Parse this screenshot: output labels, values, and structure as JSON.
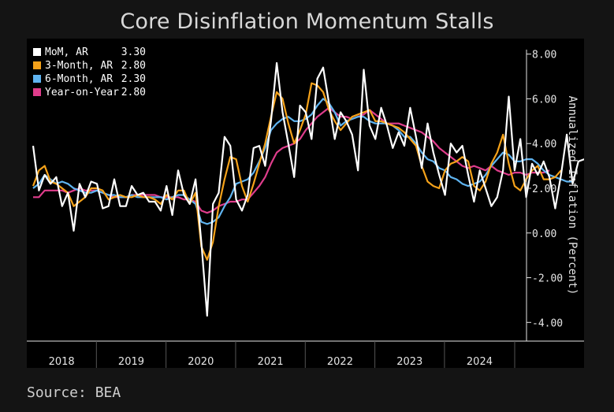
{
  "title": "Core Disinflation Momentum Stalls",
  "source": "Source: BEA",
  "chart_data": {
    "type": "line",
    "ylabel": "Annualized Inflation (Percent)",
    "ylim": [
      -4.8,
      8.2
    ],
    "yticks": [
      -4,
      -2,
      0,
      2,
      4,
      6,
      8
    ],
    "ytick_labels": [
      "-4.00",
      "-2.00",
      "0.00",
      "2.00",
      "4.00",
      "6.00",
      "8.00"
    ],
    "x_start": "2018-01",
    "x_end": "2024-08",
    "years": [
      "2018",
      "2019",
      "2020",
      "2021",
      "2022",
      "2023",
      "2024"
    ],
    "legend_position": "top-left",
    "series": [
      {
        "name": "MoM, AR",
        "last_value": "3.30",
        "color": "#ffffff",
        "values": [
          3.9,
          1.9,
          2.6,
          2.2,
          2.5,
          1.2,
          1.8,
          0.1,
          2.2,
          1.6,
          2.3,
          2.2,
          1.1,
          1.2,
          2.4,
          1.2,
          1.2,
          2.1,
          1.7,
          1.8,
          1.4,
          1.4,
          1.0,
          2.1,
          0.8,
          2.8,
          1.7,
          1.3,
          2.4,
          -0.4,
          -3.7,
          1.3,
          1.8,
          4.3,
          3.9,
          1.5,
          1.0,
          1.7,
          3.8,
          3.9,
          3.0,
          5.0,
          7.6,
          5.4,
          4.0,
          2.5,
          5.7,
          5.4,
          4.2,
          6.9,
          7.4,
          5.8,
          4.2,
          5.4,
          5.0,
          4.4,
          2.8,
          7.3,
          4.8,
          4.2,
          5.6,
          4.8,
          3.8,
          4.5,
          3.9,
          5.6,
          4.3,
          2.9,
          4.9,
          3.6,
          2.6,
          1.7,
          4.0,
          3.6,
          3.9,
          2.6,
          1.4,
          2.8,
          2.0,
          1.2,
          1.6,
          2.8,
          6.1,
          2.8,
          4.2,
          1.6,
          3.1,
          2.6,
          3.2,
          2.5,
          1.1,
          2.6,
          4.4,
          2.2,
          3.2,
          3.3
        ]
      },
      {
        "name": "3-Month, AR",
        "last_value": "2.80",
        "color": "#f5a21a",
        "values": [
          2.1,
          2.8,
          3.0,
          2.3,
          2.2,
          2.0,
          1.8,
          1.2,
          1.4,
          1.6,
          2.0,
          2.0,
          1.9,
          1.5,
          1.6,
          1.7,
          1.6,
          1.6,
          1.7,
          1.6,
          1.6,
          1.5,
          1.3,
          1.7,
          1.5,
          1.9,
          1.9,
          1.3,
          1.8,
          -0.6,
          -1.2,
          -0.4,
          1.2,
          2.4,
          3.4,
          3.3,
          2.1,
          1.4,
          2.2,
          3.1,
          4.0,
          5.2,
          6.3,
          6.0,
          4.9,
          4.0,
          4.6,
          5.3,
          6.7,
          6.6,
          6.3,
          5.5,
          5.0,
          4.6,
          4.9,
          5.2,
          5.3,
          5.4,
          5.5,
          5.0,
          5.0,
          4.9,
          4.8,
          4.7,
          4.5,
          4.2,
          3.9,
          3.0,
          2.3,
          2.1,
          2.0,
          2.8,
          3.1,
          3.2,
          3.4,
          3.2,
          2.1,
          1.9,
          2.3,
          3.1,
          3.6,
          4.4,
          3.1,
          2.1,
          1.9,
          2.4,
          2.8,
          3.0,
          2.4,
          2.4,
          2.5,
          2.8
        ]
      },
      {
        "name": "6-Month, AR",
        "last_value": "2.30",
        "color": "#5fb4f0",
        "values": [
          2.0,
          2.2,
          2.6,
          2.4,
          2.2,
          2.3,
          2.2,
          2.0,
          1.9,
          1.8,
          1.8,
          1.9,
          1.8,
          1.7,
          1.7,
          1.6,
          1.6,
          1.7,
          1.6,
          1.6,
          1.6,
          1.6,
          1.6,
          1.5,
          1.6,
          1.7,
          1.7,
          1.5,
          1.3,
          0.5,
          0.4,
          0.5,
          0.7,
          1.2,
          1.6,
          2.2,
          2.3,
          2.4,
          2.7,
          3.2,
          3.8,
          4.6,
          4.9,
          5.1,
          5.2,
          5.0,
          5.0,
          5.1,
          5.3,
          5.7,
          6.0,
          5.8,
          5.4,
          4.8,
          5.0,
          5.1,
          5.2,
          5.2,
          5.0,
          4.9,
          4.9,
          4.9,
          4.8,
          4.6,
          4.3,
          4.3,
          4.0,
          3.6,
          3.3,
          3.2,
          2.9,
          2.8,
          2.5,
          2.4,
          2.2,
          2.1,
          2.2,
          2.3,
          2.6,
          3.0,
          3.3,
          3.6,
          3.5,
          3.2,
          3.2,
          3.3,
          3.3,
          3.1,
          2.8,
          2.6,
          2.5,
          2.4,
          2.3,
          2.3
        ]
      },
      {
        "name": "Year-on-Year",
        "last_value": "2.80",
        "color": "#e03d8c",
        "values": [
          1.6,
          1.6,
          1.9,
          1.9,
          1.9,
          1.9,
          1.8,
          1.9,
          2.0,
          1.9,
          1.9,
          1.9,
          1.8,
          1.7,
          1.6,
          1.6,
          1.6,
          1.7,
          1.7,
          1.7,
          1.7,
          1.7,
          1.6,
          1.6,
          1.6,
          1.6,
          1.5,
          1.5,
          1.4,
          1.0,
          0.9,
          1.0,
          1.2,
          1.3,
          1.4,
          1.4,
          1.5,
          1.5,
          1.8,
          2.1,
          2.5,
          3.1,
          3.6,
          3.8,
          3.9,
          4.0,
          4.2,
          4.6,
          4.9,
          5.2,
          5.4,
          5.6,
          5.4,
          5.2,
          5.2,
          5.1,
          5.2,
          5.3,
          5.5,
          5.3,
          5.1,
          4.9,
          4.9,
          4.9,
          4.8,
          4.7,
          4.6,
          4.5,
          4.3,
          4.1,
          3.8,
          3.6,
          3.4,
          3.2,
          3.0,
          2.9,
          3.0,
          2.9,
          2.8,
          3.0,
          2.8,
          2.7,
          2.6,
          2.7,
          2.7,
          2.6,
          2.7,
          2.7,
          2.7,
          2.8
        ]
      }
    ]
  }
}
